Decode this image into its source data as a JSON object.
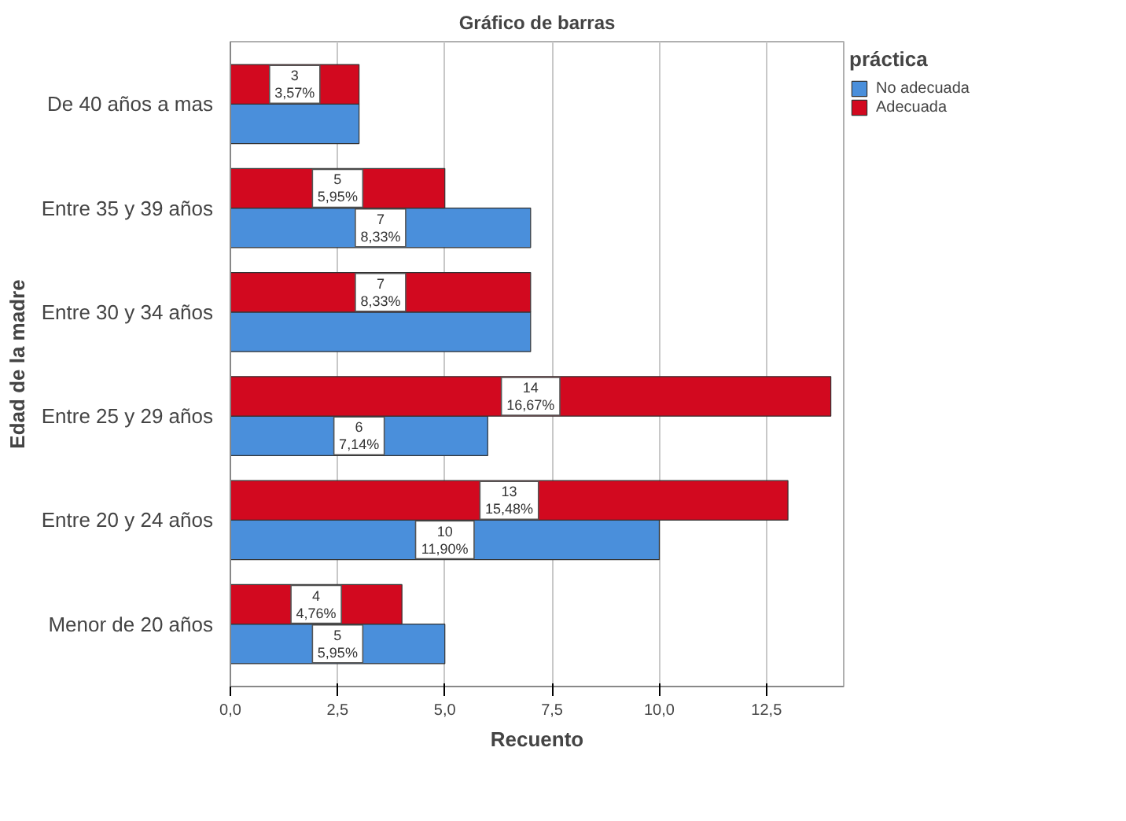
{
  "chart_data": {
    "type": "bar",
    "orientation": "horizontal",
    "title": "Gráfico de barras",
    "xlabel": "Recuento",
    "ylabel": "Edad de la madre",
    "legend_title": "práctica",
    "categories": [
      "De 40 años a mas",
      "Entre 35 y 39 años",
      "Entre 30 y 34 años",
      "Entre 25 y 29 años",
      "Entre 20 y 24 años",
      "Menor de 20 años"
    ],
    "series": [
      {
        "name": "No adecuada",
        "color": "#4a8fdb",
        "values": [
          3,
          7,
          7,
          6,
          10,
          5
        ],
        "value_labels": [
          null,
          "7\n8,33%",
          null,
          "6\n7,14%",
          "10\n11,90%",
          "5\n5,95%"
        ]
      },
      {
        "name": "Adecuada",
        "color": "#d2091f",
        "values": [
          3,
          5,
          7,
          14,
          13,
          4
        ],
        "value_labels": [
          "3\n3,57%",
          "5\n5,95%",
          "7\n8,33%",
          "14\n16,67%",
          "13\n15,48%",
          "4\n4,76%"
        ]
      }
    ],
    "xlim": [
      0,
      14.3
    ],
    "xticks": [
      {
        "value": 0,
        "label": "0,0"
      },
      {
        "value": 2.5,
        "label": "2,5"
      },
      {
        "value": 5,
        "label": "5,0"
      },
      {
        "value": 7.5,
        "label": "7,5"
      },
      {
        "value": 10,
        "label": "10,0"
      },
      {
        "value": 12.5,
        "label": "12,5"
      }
    ],
    "grid": "x",
    "legend": "top right"
  }
}
